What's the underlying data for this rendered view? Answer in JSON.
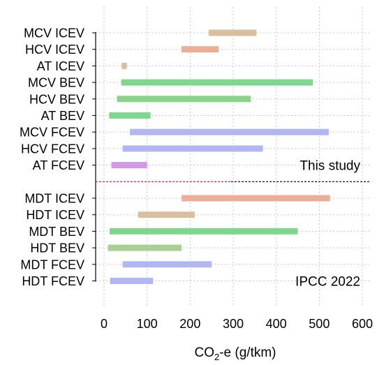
{
  "chart_data": {
    "type": "range-bar",
    "xlabel": "CO2-e (g/tkm)",
    "xlabel_parts": {
      "pre": "CO",
      "sub": "2",
      "post": "-e (g/tkm)"
    },
    "xlim": [
      0,
      600
    ],
    "xticks": [
      0,
      100,
      200,
      300,
      400,
      500,
      600
    ],
    "grid": true,
    "groups": [
      {
        "label": "This study",
        "bars": [
          {
            "label": "MCV ICEV",
            "min": 243,
            "max": 354,
            "color": "#d9bf9d"
          },
          {
            "label": "HCV ICEV",
            "min": 180,
            "max": 266,
            "color": "#ecae96"
          },
          {
            "label": "AT ICEV",
            "min": 41,
            "max": 53,
            "color": "#d9bf9d"
          },
          {
            "label": "MCV BEV",
            "min": 40,
            "max": 485,
            "color": "#7fd68f"
          },
          {
            "label": "HCV BEV",
            "min": 30,
            "max": 341,
            "color": "#8bd28a"
          },
          {
            "label": "AT BEV",
            "min": 12,
            "max": 108,
            "color": "#7fd68f"
          },
          {
            "label": "MCV FCEV",
            "min": 60,
            "max": 522,
            "color": "#b2b7f4"
          },
          {
            "label": "HCV FCEV",
            "min": 43,
            "max": 369,
            "color": "#b2b7f4"
          },
          {
            "label": "AT FCEV",
            "min": 17,
            "max": 100,
            "color": "#d09ae6"
          }
        ]
      },
      {
        "label": "IPCC 2022",
        "bars": [
          {
            "label": "MDT ICEV",
            "min": 180,
            "max": 525,
            "color": "#ecae96"
          },
          {
            "label": "HDT ICEV",
            "min": 79,
            "max": 211,
            "color": "#d9bf9d"
          },
          {
            "label": "MDT BEV",
            "min": 13,
            "max": 450,
            "color": "#7fd68f"
          },
          {
            "label": "HDT BEV",
            "min": 9,
            "max": 180,
            "color": "#aacf95"
          },
          {
            "label": "MDT FCEV",
            "min": 43,
            "max": 250,
            "color": "#b2b7f4"
          },
          {
            "label": "HDT FCEV",
            "min": 14,
            "max": 114,
            "color": "#b2b7f4"
          }
        ]
      }
    ],
    "separator_color": "#c0144c"
  }
}
